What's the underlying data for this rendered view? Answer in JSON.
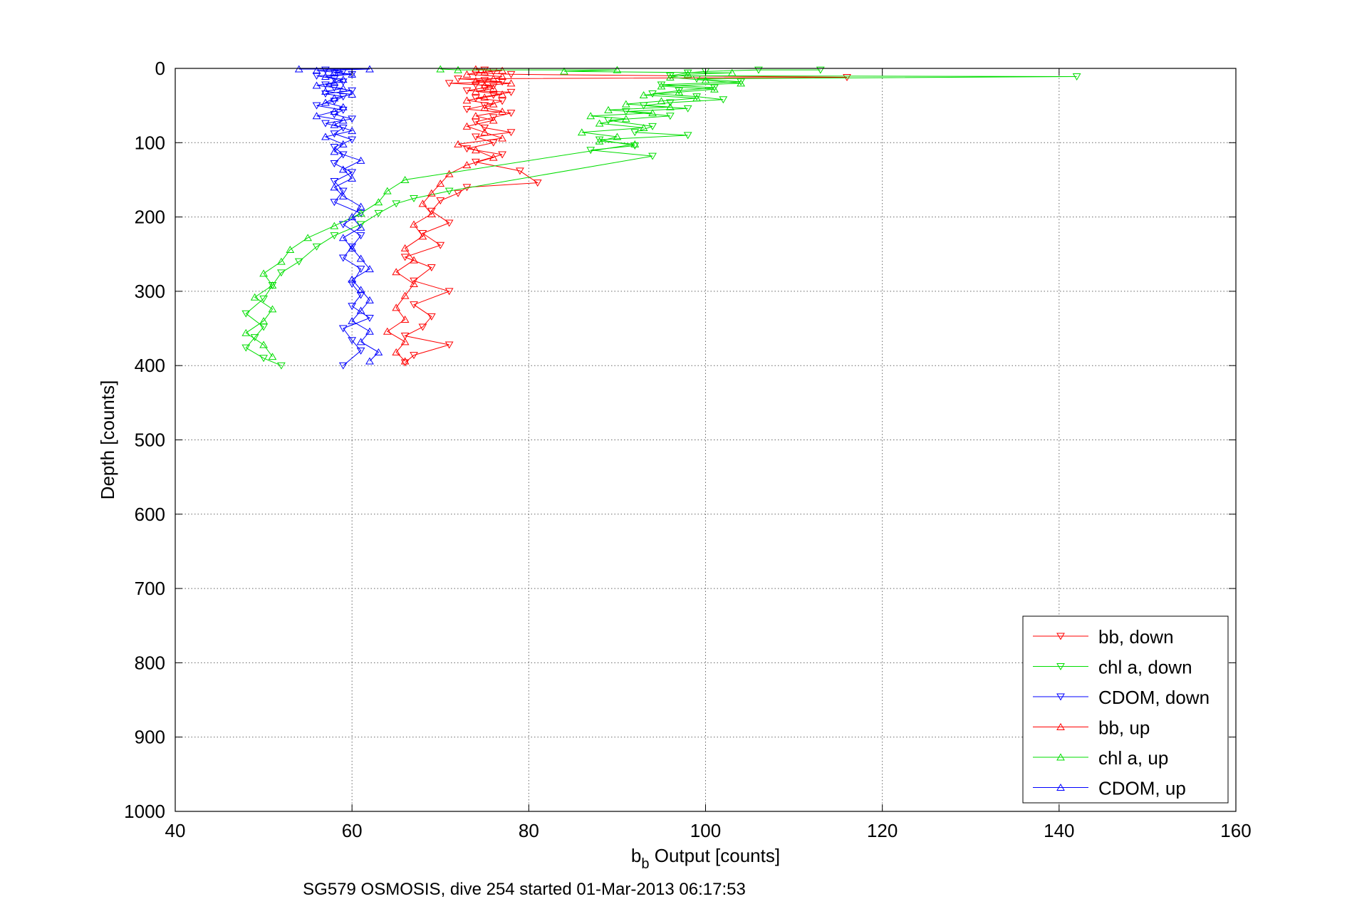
{
  "chart_data": {
    "type": "scatter",
    "title": "",
    "xlabel": {
      "main": "b",
      "sub": "b",
      "rest": " Output [counts]"
    },
    "ylabel": "Depth [counts]",
    "caption": "SG579 OSMOSIS, dive 254 started 01-Mar-2013 06:17:53",
    "xlim": [
      40,
      160
    ],
    "ylim": [
      0,
      1000
    ],
    "y_reversed": true,
    "grid": true,
    "grid_style": "dotted",
    "legend_position": "bottom-right",
    "x_ticks": [
      "40",
      "60",
      "80",
      "100",
      "120",
      "140",
      "160"
    ],
    "y_ticks": [
      "0",
      "100",
      "200",
      "300",
      "400",
      "500",
      "600",
      "700",
      "800",
      "900",
      "1000"
    ],
    "legend_order": [
      "bb, down",
      "chl a, down",
      "CDOM, down",
      "bb, up",
      "chl a, up",
      "CDOM, up"
    ],
    "series": [
      {
        "name": "bb, down",
        "color": "#ff0000",
        "marker": "triangle-down",
        "points": [
          [
            75,
            2
          ],
          [
            76,
            4
          ],
          [
            74,
            6
          ],
          [
            78,
            8
          ],
          [
            116,
            12
          ],
          [
            72,
            14
          ],
          [
            75,
            16
          ],
          [
            77,
            18
          ],
          [
            71,
            20
          ],
          [
            74,
            22
          ],
          [
            76,
            24
          ],
          [
            75,
            26
          ],
          [
            73,
            30
          ],
          [
            78,
            32
          ],
          [
            76,
            36
          ],
          [
            74,
            40
          ],
          [
            77,
            44
          ],
          [
            75,
            50
          ],
          [
            73,
            55
          ],
          [
            78,
            60
          ],
          [
            76,
            66
          ],
          [
            74,
            72
          ],
          [
            75,
            80
          ],
          [
            78,
            86
          ],
          [
            74,
            92
          ],
          [
            76,
            100
          ],
          [
            73,
            108
          ],
          [
            77,
            116
          ],
          [
            74,
            126
          ],
          [
            79,
            138
          ],
          [
            81,
            154
          ],
          [
            73,
            160
          ],
          [
            72,
            168
          ],
          [
            70,
            178
          ],
          [
            69,
            192
          ],
          [
            71,
            208
          ],
          [
            68,
            222
          ],
          [
            70,
            238
          ],
          [
            66,
            254
          ],
          [
            69,
            268
          ],
          [
            67,
            286
          ],
          [
            71,
            300
          ],
          [
            67,
            318
          ],
          [
            69,
            334
          ],
          [
            68,
            348
          ],
          [
            66,
            360
          ],
          [
            71,
            372
          ],
          [
            67,
            386
          ],
          [
            66,
            396
          ]
        ]
      },
      {
        "name": "chl a, down",
        "color": "#00dd00",
        "marker": "triangle-down",
        "points": [
          [
            142,
            11
          ],
          [
            113,
            2
          ],
          [
            106,
            2
          ],
          [
            100,
            4
          ],
          [
            98,
            6
          ],
          [
            96,
            10
          ],
          [
            99,
            14
          ],
          [
            104,
            18
          ],
          [
            95,
            22
          ],
          [
            101,
            26
          ],
          [
            97,
            30
          ],
          [
            94,
            34
          ],
          [
            99,
            38
          ],
          [
            102,
            42
          ],
          [
            96,
            46
          ],
          [
            93,
            50
          ],
          [
            98,
            54
          ],
          [
            91,
            58
          ],
          [
            96,
            64
          ],
          [
            89,
            70
          ],
          [
            94,
            78
          ],
          [
            92,
            86
          ],
          [
            98,
            90
          ],
          [
            88,
            96
          ],
          [
            92,
            104
          ],
          [
            87,
            110
          ],
          [
            94,
            118
          ],
          [
            71,
            165
          ],
          [
            67,
            175
          ],
          [
            65,
            182
          ],
          [
            63,
            195
          ],
          [
            61,
            210
          ],
          [
            58,
            225
          ],
          [
            56,
            240
          ],
          [
            54,
            260
          ],
          [
            52,
            275
          ],
          [
            51,
            292
          ],
          [
            50,
            310
          ],
          [
            48,
            330
          ],
          [
            50,
            348
          ],
          [
            49,
            362
          ],
          [
            48,
            376
          ],
          [
            50,
            390
          ],
          [
            52,
            400
          ]
        ]
      },
      {
        "name": "CDOM, down",
        "color": "#0000ff",
        "marker": "triangle-down",
        "points": [
          [
            57,
            2
          ],
          [
            59,
            4
          ],
          [
            58,
            6
          ],
          [
            60,
            8
          ],
          [
            56,
            10
          ],
          [
            58,
            14
          ],
          [
            59,
            18
          ],
          [
            57,
            22
          ],
          [
            58,
            26
          ],
          [
            60,
            30
          ],
          [
            57,
            34
          ],
          [
            59,
            38
          ],
          [
            58,
            44
          ],
          [
            56,
            50
          ],
          [
            59,
            56
          ],
          [
            58,
            62
          ],
          [
            60,
            68
          ],
          [
            57,
            74
          ],
          [
            59,
            80
          ],
          [
            58,
            88
          ],
          [
            60,
            96
          ],
          [
            58,
            106
          ],
          [
            59,
            116
          ],
          [
            58,
            128
          ],
          [
            60,
            140
          ],
          [
            58,
            152
          ],
          [
            59,
            165
          ],
          [
            58,
            180
          ],
          [
            61,
            195
          ],
          [
            59,
            210
          ],
          [
            61,
            225
          ],
          [
            60,
            240
          ],
          [
            59,
            255
          ],
          [
            61,
            270
          ],
          [
            60,
            290
          ],
          [
            61,
            305
          ],
          [
            60,
            320
          ],
          [
            62,
            336
          ],
          [
            59,
            350
          ],
          [
            60,
            366
          ],
          [
            61,
            380
          ],
          [
            59,
            400
          ]
        ]
      },
      {
        "name": "bb, up",
        "color": "#ff0000",
        "marker": "triangle-up",
        "points": [
          [
            74,
            1
          ],
          [
            77,
            3
          ],
          [
            75,
            5
          ],
          [
            73,
            8
          ],
          [
            77,
            11
          ],
          [
            76,
            14
          ],
          [
            74,
            17
          ],
          [
            78,
            20
          ],
          [
            75,
            23
          ],
          [
            76,
            27
          ],
          [
            74,
            31
          ],
          [
            77,
            35
          ],
          [
            75,
            39
          ],
          [
            73,
            43
          ],
          [
            76,
            48
          ],
          [
            75,
            53
          ],
          [
            77,
            58
          ],
          [
            74,
            64
          ],
          [
            76,
            70
          ],
          [
            73,
            78
          ],
          [
            75,
            86
          ],
          [
            77,
            94
          ],
          [
            72,
            102
          ],
          [
            74,
            110
          ],
          [
            76,
            120
          ],
          [
            73,
            130
          ],
          [
            71,
            142
          ],
          [
            70,
            155
          ],
          [
            69,
            168
          ],
          [
            68,
            182
          ],
          [
            69,
            196
          ],
          [
            67,
            210
          ],
          [
            68,
            226
          ],
          [
            66,
            242
          ],
          [
            67,
            258
          ],
          [
            65,
            274
          ],
          [
            67,
            290
          ],
          [
            66,
            306
          ],
          [
            65,
            322
          ],
          [
            66,
            338
          ],
          [
            64,
            354
          ],
          [
            66,
            368
          ],
          [
            65,
            382
          ],
          [
            66,
            394
          ]
        ]
      },
      {
        "name": "chl a, up",
        "color": "#00dd00",
        "marker": "triangle-up",
        "points": [
          [
            70,
            1
          ],
          [
            72,
            2
          ],
          [
            90,
            2
          ],
          [
            84,
            4
          ],
          [
            103,
            6
          ],
          [
            98,
            8
          ],
          [
            96,
            12
          ],
          [
            100,
            16
          ],
          [
            104,
            20
          ],
          [
            95,
            24
          ],
          [
            101,
            28
          ],
          [
            97,
            32
          ],
          [
            93,
            36
          ],
          [
            99,
            40
          ],
          [
            95,
            44
          ],
          [
            91,
            48
          ],
          [
            96,
            52
          ],
          [
            89,
            56
          ],
          [
            94,
            60
          ],
          [
            87,
            64
          ],
          [
            91,
            68
          ],
          [
            88,
            74
          ],
          [
            93,
            80
          ],
          [
            86,
            86
          ],
          [
            90,
            92
          ],
          [
            88,
            98
          ],
          [
            92,
            102
          ],
          [
            66,
            150
          ],
          [
            64,
            165
          ],
          [
            63,
            180
          ],
          [
            61,
            195
          ],
          [
            58,
            212
          ],
          [
            55,
            228
          ],
          [
            53,
            244
          ],
          [
            52,
            260
          ],
          [
            50,
            276
          ],
          [
            51,
            292
          ],
          [
            49,
            308
          ],
          [
            51,
            324
          ],
          [
            50,
            340
          ],
          [
            48,
            356
          ],
          [
            50,
            372
          ],
          [
            51,
            388
          ]
        ]
      },
      {
        "name": "CDOM, up",
        "color": "#0000ff",
        "marker": "triangle-up",
        "points": [
          [
            54,
            1
          ],
          [
            62,
            1
          ],
          [
            56,
            3
          ],
          [
            58,
            5
          ],
          [
            60,
            8
          ],
          [
            57,
            11
          ],
          [
            59,
            15
          ],
          [
            58,
            19
          ],
          [
            56,
            23
          ],
          [
            59,
            27
          ],
          [
            57,
            31
          ],
          [
            60,
            35
          ],
          [
            58,
            40
          ],
          [
            57,
            46
          ],
          [
            59,
            52
          ],
          [
            58,
            58
          ],
          [
            56,
            64
          ],
          [
            59,
            70
          ],
          [
            58,
            76
          ],
          [
            60,
            84
          ],
          [
            57,
            92
          ],
          [
            59,
            102
          ],
          [
            58,
            112
          ],
          [
            61,
            124
          ],
          [
            59,
            136
          ],
          [
            60,
            148
          ],
          [
            58,
            160
          ],
          [
            59,
            172
          ],
          [
            61,
            186
          ],
          [
            60,
            200
          ],
          [
            61,
            214
          ],
          [
            59,
            228
          ],
          [
            60,
            242
          ],
          [
            61,
            256
          ],
          [
            62,
            270
          ],
          [
            60,
            284
          ],
          [
            61,
            298
          ],
          [
            62,
            312
          ],
          [
            61,
            326
          ],
          [
            60,
            340
          ],
          [
            62,
            354
          ],
          [
            61,
            368
          ],
          [
            63,
            382
          ],
          [
            62,
            394
          ]
        ]
      }
    ]
  }
}
